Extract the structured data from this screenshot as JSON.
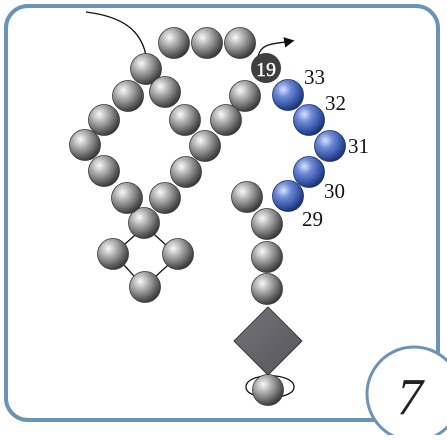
{
  "diagram": {
    "highlighted_numbers": [
      "29",
      "30",
      "31",
      "32",
      "33"
    ],
    "start_bead_number": "19",
    "step_number": "7"
  },
  "colors": {
    "frame_border": "#6b93b8",
    "grey_bead": "#6e6e6e",
    "blue_bead": "#3d5fae",
    "diamond": "#616166",
    "thread": "#111111",
    "badge_fill": "#ffffff"
  }
}
